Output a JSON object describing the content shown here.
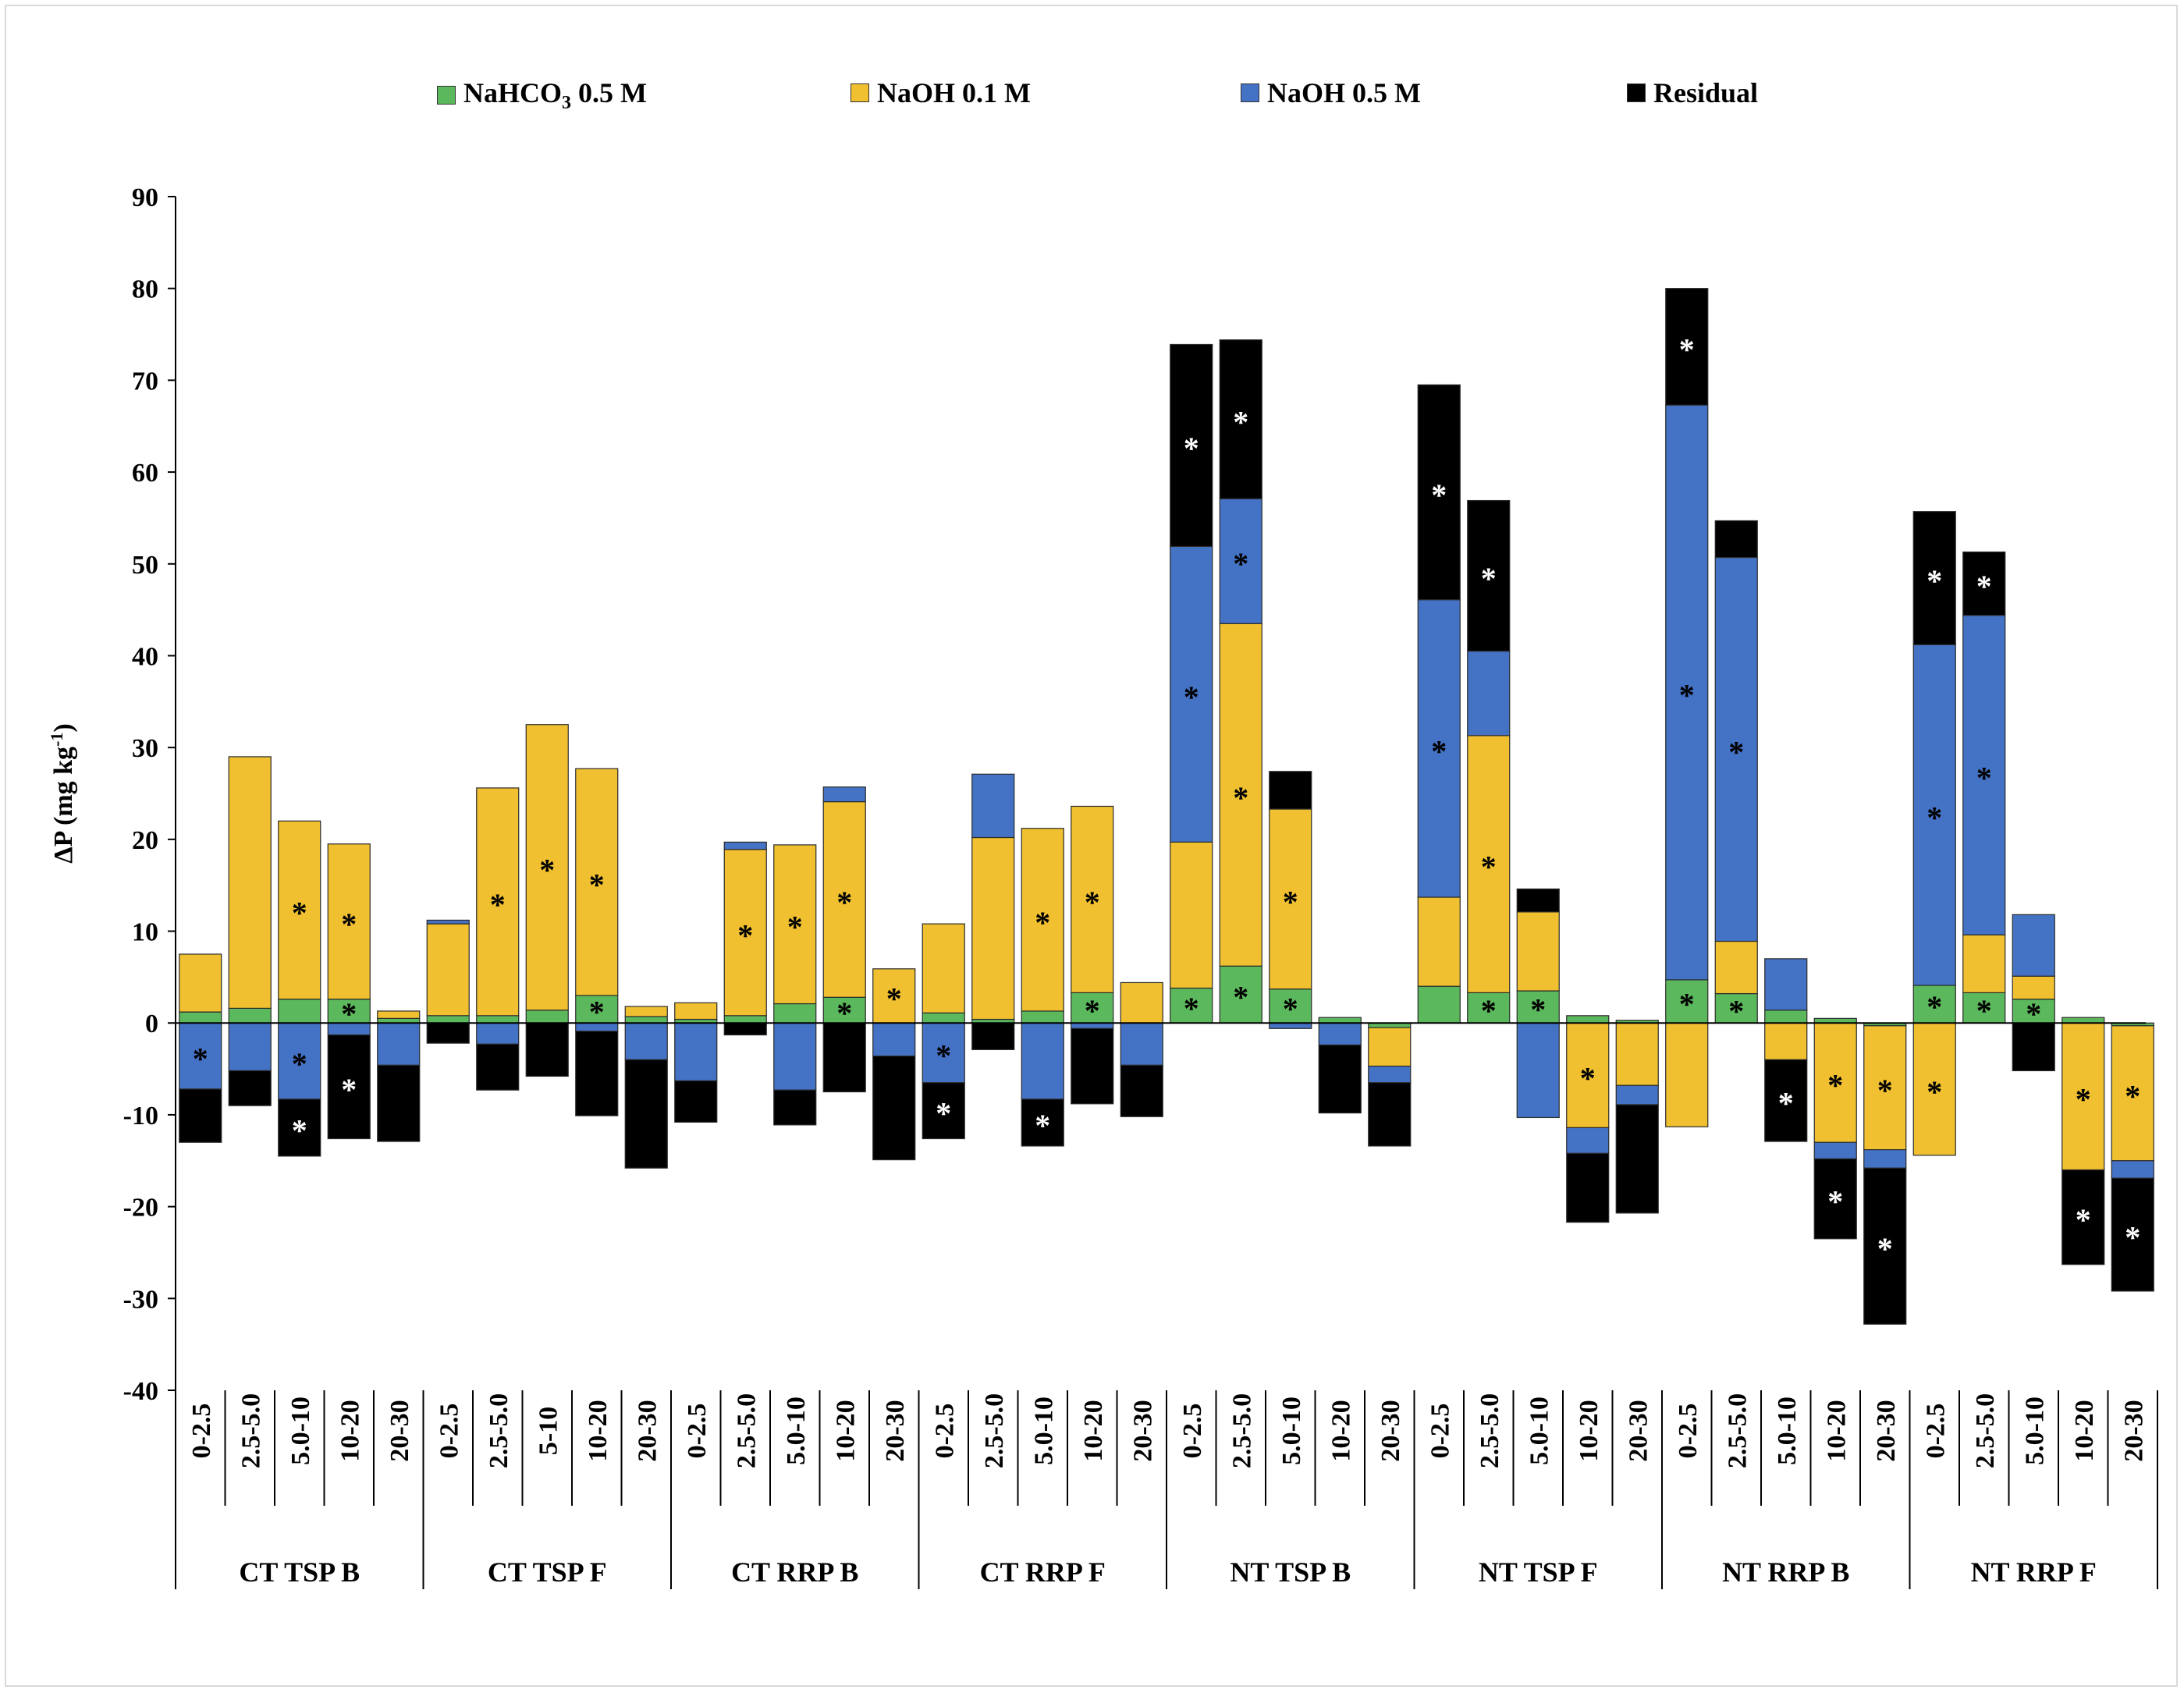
{
  "colors": {
    "nahco3": "#5cb85c",
    "naoh01": "#f0c030",
    "naoh05": "#4472c4",
    "residual": "#000000"
  },
  "legend": {
    "nahco3_main": "NaHCO",
    "nahco3_sub": "3",
    "nahco3_tail": " 0.5 M",
    "naoh01": "NaOH 0.1 M",
    "naoh05": "NaOH 0.5 M",
    "residual": "Residual"
  },
  "chart_data": {
    "type": "bar",
    "stacked": true,
    "ylabel": "ΔP (mg kg-1)",
    "ylabel_main": "ΔP (mg kg",
    "ylabel_sup": "-1",
    "ylabel_tail": ")",
    "ylim": [
      -40,
      90
    ],
    "yticks": [
      90,
      80,
      70,
      60,
      50,
      40,
      30,
      20,
      10,
      0,
      -10,
      -20,
      -30,
      -40
    ],
    "series_order": [
      "NaHCO3 0.5 M",
      "NaOH 0.1 M",
      "NaOH 0.5 M",
      "Residual"
    ],
    "groups": [
      {
        "name": "CT TSP B",
        "depths": [
          "0-2.5",
          "2.5-5.0",
          "5.0-10",
          "10-20",
          "20-30"
        ]
      },
      {
        "name": "CT TSP F",
        "depths": [
          "0-2.5",
          "2.5-5.0",
          "5-10",
          "10-20",
          "20-30"
        ]
      },
      {
        "name": "CT RRP B",
        "depths": [
          "0-2.5",
          "2.5-5.0",
          "5.0-10",
          "10-20",
          "20-30"
        ]
      },
      {
        "name": "CT RRP F",
        "depths": [
          "0-2.5",
          "2.5-5.0",
          "5.0-10",
          "10-20",
          "20-30"
        ]
      },
      {
        "name": "NT TSP B",
        "depths": [
          "0-2.5",
          "2.5-5.0",
          "5.0-10",
          "10-20",
          "20-30"
        ]
      },
      {
        "name": "NT TSP F",
        "depths": [
          "0-2.5",
          "2.5-5.0",
          "5.0-10",
          "10-20",
          "20-30"
        ]
      },
      {
        "name": "NT RRP B",
        "depths": [
          "0-2.5",
          "2.5-5.0",
          "5.0-10",
          "10-20",
          "20-30"
        ]
      },
      {
        "name": "NT RRP F",
        "depths": [
          "0-2.5",
          "2.5-5.0",
          "5.0-10",
          "10-20",
          "20-30"
        ]
      }
    ],
    "bars": [
      {
        "group": "CT TSP B",
        "depth": "0-2.5",
        "values": [
          1.2,
          6.3,
          -7.2,
          -5.8
        ],
        "sig": [
          false,
          false,
          true,
          false
        ]
      },
      {
        "group": "CT TSP B",
        "depth": "2.5-5.0",
        "values": [
          1.6,
          27.4,
          -5.2,
          -3.8
        ],
        "sig": [
          false,
          false,
          false,
          false
        ]
      },
      {
        "group": "CT TSP B",
        "depth": "5.0-10",
        "values": [
          2.6,
          19.4,
          -8.3,
          -6.2
        ],
        "sig": [
          false,
          true,
          true,
          true
        ]
      },
      {
        "group": "CT TSP B",
        "depth": "10-20",
        "values": [
          2.6,
          16.9,
          -1.3,
          -11.3
        ],
        "sig": [
          true,
          true,
          false,
          true
        ]
      },
      {
        "group": "CT TSP B",
        "depth": "20-30",
        "values": [
          0.5,
          0.8,
          -4.6,
          -8.3
        ],
        "sig": [
          false,
          false,
          false,
          false
        ]
      },
      {
        "group": "CT TSP F",
        "depth": "0-2.5",
        "values": [
          0.8,
          10.0,
          0.4,
          -2.2
        ],
        "sig": [
          false,
          false,
          false,
          false
        ]
      },
      {
        "group": "CT TSP F",
        "depth": "2.5-5.0",
        "values": [
          0.8,
          24.8,
          -2.3,
          -5.0
        ],
        "sig": [
          false,
          true,
          false,
          false
        ]
      },
      {
        "group": "CT TSP F",
        "depth": "5-10",
        "values": [
          1.4,
          31.1,
          0,
          -5.8
        ],
        "sig": [
          false,
          true,
          false,
          false
        ]
      },
      {
        "group": "CT TSP F",
        "depth": "10-20",
        "values": [
          3.0,
          24.7,
          -0.9,
          -9.2
        ],
        "sig": [
          true,
          true,
          false,
          false
        ]
      },
      {
        "group": "CT TSP F",
        "depth": "20-30",
        "values": [
          0.7,
          1.1,
          -4.0,
          -11.8
        ],
        "sig": [
          false,
          false,
          false,
          false
        ]
      },
      {
        "group": "CT RRP B",
        "depth": "0-2.5",
        "values": [
          0.4,
          1.8,
          -6.3,
          -4.5
        ],
        "sig": [
          false,
          false,
          false,
          false
        ]
      },
      {
        "group": "CT RRP B",
        "depth": "2.5-5.0",
        "values": [
          0.8,
          18.1,
          0.8,
          -1.3
        ],
        "sig": [
          false,
          true,
          false,
          false
        ]
      },
      {
        "group": "CT RRP B",
        "depth": "5.0-10",
        "values": [
          2.1,
          17.3,
          -7.3,
          -3.8
        ],
        "sig": [
          false,
          true,
          false,
          false
        ]
      },
      {
        "group": "CT RRP B",
        "depth": "10-20",
        "values": [
          2.8,
          21.3,
          1.6,
          -7.5
        ],
        "sig": [
          true,
          true,
          false,
          false
        ]
      },
      {
        "group": "CT RRP B",
        "depth": "20-30",
        "values": [
          0,
          5.9,
          -3.6,
          -11.3
        ],
        "sig": [
          false,
          true,
          false,
          false
        ]
      },
      {
        "group": "CT RRP F",
        "depth": "0-2.5",
        "values": [
          1.1,
          9.7,
          -6.5,
          -6.1
        ],
        "sig": [
          false,
          false,
          true,
          true
        ]
      },
      {
        "group": "CT RRP F",
        "depth": "2.5-5.0",
        "values": [
          0.4,
          19.8,
          6.9,
          -2.9
        ],
        "sig": [
          false,
          false,
          false,
          false
        ]
      },
      {
        "group": "CT RRP F",
        "depth": "5.0-10",
        "values": [
          1.3,
          19.9,
          -8.3,
          -5.1
        ],
        "sig": [
          false,
          true,
          false,
          true
        ]
      },
      {
        "group": "CT RRP F",
        "depth": "10-20",
        "values": [
          3.3,
          20.3,
          -0.6,
          -8.2
        ],
        "sig": [
          true,
          true,
          false,
          false
        ]
      },
      {
        "group": "CT RRP F",
        "depth": "20-30",
        "values": [
          0,
          4.4,
          -4.6,
          -5.6
        ],
        "sig": [
          false,
          false,
          false,
          false
        ]
      },
      {
        "group": "NT TSP B",
        "depth": "0-2.5",
        "values": [
          3.8,
          15.9,
          32.2,
          22.0
        ],
        "sig": [
          true,
          false,
          true,
          true
        ]
      },
      {
        "group": "NT TSP B",
        "depth": "2.5-5.0",
        "values": [
          6.2,
          37.3,
          13.6,
          17.3
        ],
        "sig": [
          true,
          true,
          true,
          true
        ]
      },
      {
        "group": "NT TSP B",
        "depth": "5.0-10",
        "values": [
          3.7,
          19.6,
          -0.6,
          4.1
        ],
        "sig": [
          true,
          true,
          false,
          false
        ]
      },
      {
        "group": "NT TSP B",
        "depth": "10-20",
        "values": [
          0.6,
          0,
          -2.4,
          -7.4
        ],
        "sig": [
          false,
          false,
          false,
          false
        ]
      },
      {
        "group": "NT TSP B",
        "depth": "20-30",
        "values": [
          -0.5,
          -4.2,
          -1.8,
          -6.9
        ],
        "sig": [
          false,
          false,
          false,
          false
        ]
      },
      {
        "group": "NT TSP F",
        "depth": "0-2.5",
        "values": [
          4.0,
          9.7,
          32.4,
          23.4
        ],
        "sig": [
          false,
          false,
          true,
          true
        ]
      },
      {
        "group": "NT TSP F",
        "depth": "2.5-5.0",
        "values": [
          3.3,
          28.0,
          9.2,
          16.4
        ],
        "sig": [
          true,
          true,
          false,
          true
        ]
      },
      {
        "group": "NT TSP F",
        "depth": "5.0-10",
        "values": [
          3.5,
          8.6,
          -10.3,
          2.5
        ],
        "sig": [
          true,
          false,
          false,
          false
        ]
      },
      {
        "group": "NT TSP F",
        "depth": "10-20",
        "values": [
          0.8,
          -11.4,
          -2.8,
          -7.5
        ],
        "sig": [
          false,
          true,
          false,
          false
        ]
      },
      {
        "group": "NT TSP F",
        "depth": "20-30",
        "values": [
          0.3,
          -6.8,
          -2.1,
          -11.8
        ],
        "sig": [
          false,
          false,
          false,
          false
        ]
      },
      {
        "group": "NT RRP B",
        "depth": "0-2.5",
        "values": [
          4.7,
          -11.3,
          62.6,
          12.7
        ],
        "sig": [
          true,
          false,
          true,
          true
        ]
      },
      {
        "group": "NT RRP B",
        "depth": "2.5-5.0",
        "values": [
          3.2,
          5.7,
          41.8,
          4.0
        ],
        "sig": [
          true,
          false,
          true,
          false
        ]
      },
      {
        "group": "NT RRP B",
        "depth": "5.0-10",
        "values": [
          1.4,
          -4.0,
          5.6,
          -8.9
        ],
        "sig": [
          false,
          false,
          false,
          true
        ]
      },
      {
        "group": "NT RRP B",
        "depth": "10-20",
        "values": [
          0.5,
          -13.0,
          -1.8,
          -8.7
        ],
        "sig": [
          false,
          true,
          false,
          true
        ]
      },
      {
        "group": "NT RRP B",
        "depth": "20-30",
        "values": [
          -0.3,
          -13.5,
          -2.0,
          -17.0
        ],
        "sig": [
          false,
          true,
          false,
          true
        ]
      },
      {
        "group": "NT RRP F",
        "depth": "0-2.5",
        "values": [
          4.1,
          -14.4,
          37.1,
          14.5
        ],
        "sig": [
          true,
          true,
          true,
          true
        ]
      },
      {
        "group": "NT RRP F",
        "depth": "2.5-5.0",
        "values": [
          3.3,
          6.3,
          34.8,
          6.9
        ],
        "sig": [
          true,
          false,
          true,
          true
        ]
      },
      {
        "group": "NT RRP F",
        "depth": "5.0-10",
        "values": [
          2.6,
          2.5,
          6.7,
          -5.2
        ],
        "sig": [
          true,
          false,
          false,
          false
        ]
      },
      {
        "group": "NT RRP F",
        "depth": "10-20",
        "values": [
          0.6,
          -16.0,
          0,
          -10.3
        ],
        "sig": [
          false,
          true,
          false,
          true
        ]
      },
      {
        "group": "NT RRP F",
        "depth": "20-30",
        "values": [
          -0.3,
          -14.7,
          -1.9,
          -12.3
        ],
        "sig": [
          false,
          true,
          false,
          true
        ]
      }
    ]
  }
}
